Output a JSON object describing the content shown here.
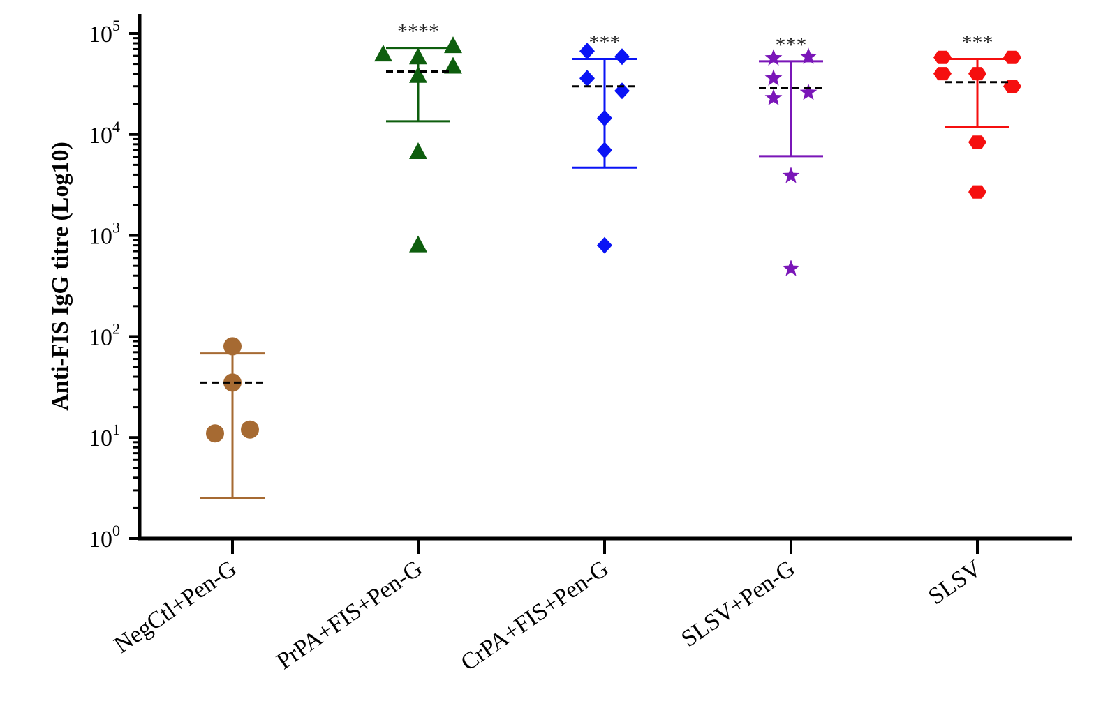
{
  "chart_data": {
    "type": "scatter",
    "title": "",
    "xlabel": "",
    "ylabel": "Anti-FIS IgG titre (Log10)",
    "yscale": "log10",
    "ylim": [
      1,
      100000
    ],
    "yticks": [
      {
        "value": 1,
        "base": "10",
        "exp": "0"
      },
      {
        "value": 10,
        "base": "10",
        "exp": "1"
      },
      {
        "value": 100,
        "base": "10",
        "exp": "2"
      },
      {
        "value": 1000,
        "base": "10",
        "exp": "3"
      },
      {
        "value": 10000,
        "base": "10",
        "exp": "4"
      },
      {
        "value": 100000,
        "base": "10",
        "exp": "5"
      }
    ],
    "categories": [
      "NegCtl+Pen-G",
      "PrPA+FIS+Pen-G",
      "CrPA+FIS+Pen-G",
      "SLSV+Pen-G",
      "SLSV"
    ],
    "series": [
      {
        "name": "NegCtl+Pen-G",
        "color": "#A66A32",
        "marker": "circle",
        "points": [
          80,
          35,
          11,
          12
        ],
        "mean": 35,
        "sd_upper": 68,
        "sd_lower": 2.5,
        "significance": ""
      },
      {
        "name": "PrPA+FIS+Pen-G",
        "color": "#0E5E0E",
        "marker": "triangle",
        "points": [
          62000,
          58000,
          75000,
          47000,
          38000,
          6700,
          800
        ],
        "mean": 42000,
        "sd_upper": 72000,
        "sd_lower": 13500,
        "significance": "****"
      },
      {
        "name": "CrPA+FIS+Pen-G",
        "color": "#0A14F5",
        "marker": "diamond",
        "points": [
          67000,
          59000,
          36000,
          27000,
          14500,
          7000,
          800
        ],
        "mean": 30000,
        "sd_upper": 56000,
        "sd_lower": 4700,
        "significance": "***"
      },
      {
        "name": "SLSV+Pen-G",
        "color": "#7A16B8",
        "marker": "star",
        "points": [
          57000,
          59000,
          36000,
          23000,
          26000,
          3900,
          470
        ],
        "mean": 29000,
        "sd_upper": 53000,
        "sd_lower": 6100,
        "significance": "***"
      },
      {
        "name": "SLSV",
        "color": "#F50F0F",
        "marker": "hexagon",
        "points": [
          58000,
          58000,
          40000,
          40000,
          30000,
          8400,
          2700
        ],
        "mean": 33000,
        "sd_upper": 56000,
        "sd_lower": 11800,
        "significance": "***"
      }
    ]
  }
}
